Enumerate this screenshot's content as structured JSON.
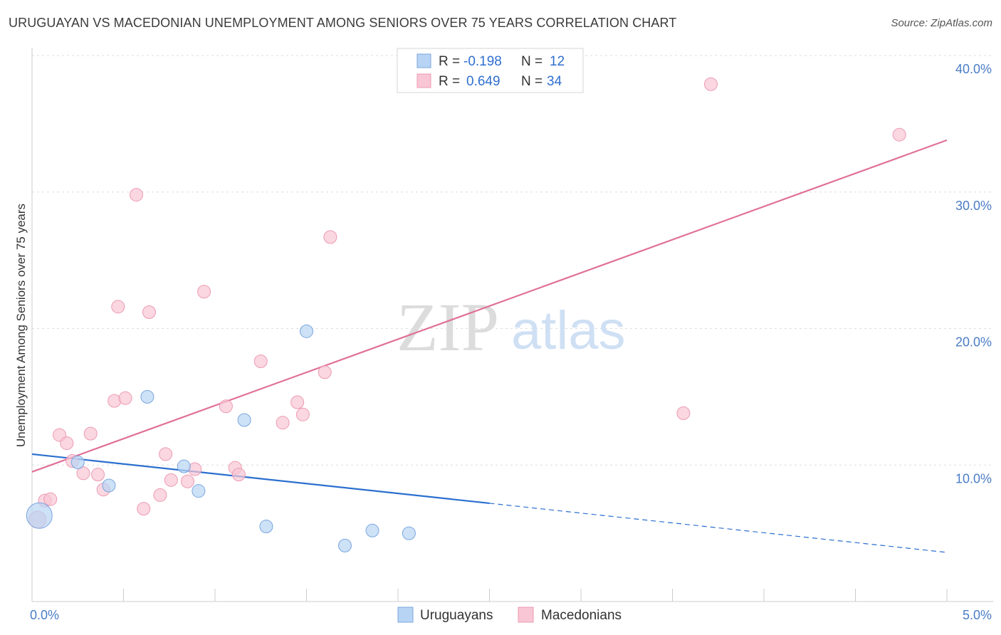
{
  "header": {
    "title": "URUGUAYAN VS MACEDONIAN UNEMPLOYMENT AMONG SENIORS OVER 75 YEARS CORRELATION CHART",
    "source": "Source: ZipAtlas.com"
  },
  "watermark": {
    "zip": "ZIP",
    "atlas": "atlas"
  },
  "colors": {
    "uruguayans_fill": "#b8d4f4",
    "uruguayans_stroke": "#7aa6de",
    "uruguayans_line": "#2b6fcf",
    "macedonians_fill": "#f8c6d4",
    "macedonians_stroke": "#ec9ab2",
    "macedonians_line": "#e07099",
    "grid": "#dddddd",
    "axis": "#cccccc"
  },
  "legend": {
    "rows": [
      {
        "r_label": "R =",
        "r_value": "-0.198",
        "n_label": "N =",
        "n_value": "12"
      },
      {
        "r_label": "R =",
        "r_value": "0.649",
        "n_label": "N =",
        "n_value": "34"
      }
    ]
  },
  "chart_data": {
    "type": "scatter",
    "title": "URUGUAYAN VS MACEDONIAN UNEMPLOYMENT AMONG SENIORS OVER 75 YEARS CORRELATION CHART",
    "xlabel": "",
    "ylabel": "Unemployment Among Seniors over 75 years",
    "xlim": [
      0,
      5
    ],
    "ylim": [
      0,
      40
    ],
    "x_tick_labels": [
      "0.0%",
      "5.0%"
    ],
    "x_tick_values": [
      0,
      5
    ],
    "y_tick_labels": [
      "10.0%",
      "20.0%",
      "30.0%",
      "40.0%"
    ],
    "y_tick_values": [
      10,
      20,
      30,
      40
    ],
    "series": [
      {
        "name": "Uruguayans",
        "points": [
          [
            0.04,
            6.3,
            18
          ],
          [
            0.25,
            10.2,
            9
          ],
          [
            0.42,
            8.5,
            9
          ],
          [
            0.63,
            15.0,
            9
          ],
          [
            0.83,
            9.9,
            9
          ],
          [
            0.91,
            8.1,
            9
          ],
          [
            1.16,
            13.3,
            9
          ],
          [
            1.28,
            5.5,
            9
          ],
          [
            1.5,
            19.8,
            9
          ],
          [
            1.71,
            4.1,
            9
          ],
          [
            1.86,
            5.2,
            9
          ],
          [
            2.06,
            5.0,
            9
          ]
        ],
        "trend": {
          "x_start": 0,
          "y_start": 10.8,
          "x_solid_end": 2.5,
          "y_solid_end": 7.2,
          "x_end": 5,
          "y_end": 3.6
        }
      },
      {
        "name": "Macedonians",
        "points": [
          [
            0.03,
            6.0,
            12
          ],
          [
            0.07,
            7.4,
            9
          ],
          [
            0.1,
            7.5,
            9
          ],
          [
            0.15,
            12.2,
            9
          ],
          [
            0.19,
            11.6,
            9
          ],
          [
            0.22,
            10.3,
            9
          ],
          [
            0.28,
            9.4,
            9
          ],
          [
            0.32,
            12.3,
            9
          ],
          [
            0.36,
            9.3,
            9
          ],
          [
            0.39,
            8.2,
            9
          ],
          [
            0.45,
            14.7,
            9
          ],
          [
            0.47,
            21.6,
            9
          ],
          [
            0.51,
            14.9,
            9
          ],
          [
            0.57,
            29.8,
            9
          ],
          [
            0.61,
            6.8,
            9
          ],
          [
            0.64,
            21.2,
            9
          ],
          [
            0.7,
            7.8,
            9
          ],
          [
            0.73,
            10.8,
            9
          ],
          [
            0.76,
            8.9,
            9
          ],
          [
            0.85,
            8.8,
            9
          ],
          [
            0.89,
            9.7,
            9
          ],
          [
            0.94,
            22.7,
            9
          ],
          [
            1.06,
            14.3,
            9
          ],
          [
            1.11,
            9.8,
            9
          ],
          [
            1.13,
            9.3,
            9
          ],
          [
            1.25,
            17.6,
            9
          ],
          [
            1.37,
            13.1,
            9
          ],
          [
            1.45,
            14.6,
            9
          ],
          [
            1.48,
            13.7,
            9
          ],
          [
            1.6,
            16.8,
            9
          ],
          [
            1.63,
            26.7,
            9
          ],
          [
            3.56,
            13.8,
            9
          ],
          [
            3.71,
            37.9,
            9
          ],
          [
            4.74,
            34.2,
            9
          ]
        ],
        "trend": {
          "x_start": 0,
          "y_start": 9.5,
          "x_end": 5,
          "y_end": 33.8
        }
      }
    ],
    "legend_entries": [
      "Uruguayans",
      "Macedonians"
    ]
  }
}
